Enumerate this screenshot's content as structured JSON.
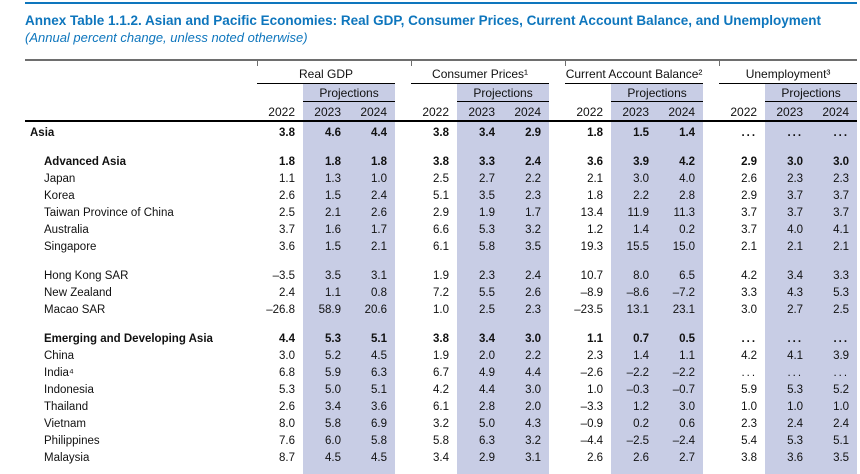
{
  "title": "Annex Table 1.1.2. Asian and Pacific Economies: Real GDP, Consumer Prices, Current Account Balance, and Unemployment",
  "subtitle": "(Annual percent change, unless noted otherwise)",
  "colors": {
    "accent_blue": "#0e76bd",
    "projection_shade": "#c8cde5",
    "top_rule_gray": "#6e6e6e"
  },
  "table": {
    "projections_label": "Projections",
    "years": [
      "2022",
      "2023",
      "2024"
    ],
    "groups": [
      {
        "label": "Real GDP"
      },
      {
        "label": "Consumer Prices¹"
      },
      {
        "label": "Current Account Balance²"
      },
      {
        "label": "Unemployment³"
      }
    ],
    "rows": [
      {
        "name": "Asia",
        "bold": true,
        "indent": 1,
        "space_before": false,
        "values": [
          "3.8",
          "4.6",
          "4.4",
          "3.8",
          "3.4",
          "2.9",
          "1.8",
          "1.5",
          "1.4",
          "...",
          "...",
          "..."
        ]
      },
      {
        "name": "Advanced Asia",
        "bold": true,
        "indent": 2,
        "space_before": true,
        "values": [
          "1.8",
          "1.8",
          "1.8",
          "3.8",
          "3.3",
          "2.4",
          "3.6",
          "3.9",
          "4.2",
          "2.9",
          "3.0",
          "3.0"
        ]
      },
      {
        "name": "Japan",
        "bold": false,
        "indent": 2,
        "space_before": false,
        "values": [
          "1.1",
          "1.3",
          "1.0",
          "2.5",
          "2.7",
          "2.2",
          "2.1",
          "3.0",
          "4.0",
          "2.6",
          "2.3",
          "2.3"
        ]
      },
      {
        "name": "Korea",
        "bold": false,
        "indent": 2,
        "space_before": false,
        "values": [
          "2.6",
          "1.5",
          "2.4",
          "5.1",
          "3.5",
          "2.3",
          "1.8",
          "2.2",
          "2.8",
          "2.9",
          "3.7",
          "3.7"
        ]
      },
      {
        "name": "Taiwan Province of China",
        "bold": false,
        "indent": 2,
        "space_before": false,
        "values": [
          "2.5",
          "2.1",
          "2.6",
          "2.9",
          "1.9",
          "1.7",
          "13.4",
          "11.9",
          "11.3",
          "3.7",
          "3.7",
          "3.7"
        ]
      },
      {
        "name": "Australia",
        "bold": false,
        "indent": 2,
        "space_before": false,
        "values": [
          "3.7",
          "1.6",
          "1.7",
          "6.6",
          "5.3",
          "3.2",
          "1.2",
          "1.4",
          "0.2",
          "3.7",
          "4.0",
          "4.1"
        ]
      },
      {
        "name": "Singapore",
        "bold": false,
        "indent": 2,
        "space_before": false,
        "values": [
          "3.6",
          "1.5",
          "2.1",
          "6.1",
          "5.8",
          "3.5",
          "19.3",
          "15.5",
          "15.0",
          "2.1",
          "2.1",
          "2.1"
        ]
      },
      {
        "name": "Hong Kong SAR",
        "bold": false,
        "indent": 2,
        "space_before": true,
        "values": [
          "–3.5",
          "3.5",
          "3.1",
          "1.9",
          "2.3",
          "2.4",
          "10.7",
          "8.0",
          "6.5",
          "4.2",
          "3.4",
          "3.3"
        ]
      },
      {
        "name": "New Zealand",
        "bold": false,
        "indent": 2,
        "space_before": false,
        "values": [
          "2.4",
          "1.1",
          "0.8",
          "7.2",
          "5.5",
          "2.6",
          "–8.9",
          "–8.6",
          "–7.2",
          "3.3",
          "4.3",
          "5.3"
        ]
      },
      {
        "name": "Macao SAR",
        "bold": false,
        "indent": 2,
        "space_before": false,
        "values": [
          "–26.8",
          "58.9",
          "20.6",
          "1.0",
          "2.5",
          "2.3",
          "–23.5",
          "13.1",
          "23.1",
          "3.0",
          "2.7",
          "2.5"
        ]
      },
      {
        "name": "Emerging and Developing Asia",
        "bold": true,
        "indent": 2,
        "space_before": true,
        "values": [
          "4.4",
          "5.3",
          "5.1",
          "3.8",
          "3.4",
          "3.0",
          "1.1",
          "0.7",
          "0.5",
          "...",
          "...",
          "..."
        ]
      },
      {
        "name": "China",
        "bold": false,
        "indent": 2,
        "space_before": false,
        "values": [
          "3.0",
          "5.2",
          "4.5",
          "1.9",
          "2.0",
          "2.2",
          "2.3",
          "1.4",
          "1.1",
          "4.2",
          "4.1",
          "3.9"
        ]
      },
      {
        "name": "India⁴",
        "bold": false,
        "indent": 2,
        "space_before": false,
        "values": [
          "6.8",
          "5.9",
          "6.3",
          "6.7",
          "4.9",
          "4.4",
          "–2.6",
          "–2.2",
          "–2.2",
          "...",
          "...",
          "..."
        ]
      },
      {
        "name": "Indonesia",
        "bold": false,
        "indent": 2,
        "space_before": false,
        "values": [
          "5.3",
          "5.0",
          "5.1",
          "4.2",
          "4.4",
          "3.0",
          "1.0",
          "–0.3",
          "–0.7",
          "5.9",
          "5.3",
          "5.2"
        ]
      },
      {
        "name": "Thailand",
        "bold": false,
        "indent": 2,
        "space_before": false,
        "values": [
          "2.6",
          "3.4",
          "3.6",
          "6.1",
          "2.8",
          "2.0",
          "–3.3",
          "1.2",
          "3.0",
          "1.0",
          "1.0",
          "1.0"
        ]
      },
      {
        "name": "Vietnam",
        "bold": false,
        "indent": 2,
        "space_before": false,
        "values": [
          "8.0",
          "5.8",
          "6.9",
          "3.2",
          "5.0",
          "4.3",
          "–0.9",
          "0.2",
          "0.6",
          "2.3",
          "2.4",
          "2.4"
        ]
      },
      {
        "name": "Philippines",
        "bold": false,
        "indent": 2,
        "space_before": false,
        "values": [
          "7.6",
          "6.0",
          "5.8",
          "5.8",
          "6.3",
          "3.2",
          "–4.4",
          "–2.5",
          "–2.4",
          "5.4",
          "5.3",
          "5.1"
        ]
      },
      {
        "name": "Malaysia",
        "bold": false,
        "indent": 2,
        "space_before": false,
        "values": [
          "8.7",
          "4.5",
          "4.5",
          "3.4",
          "2.9",
          "3.1",
          "2.6",
          "2.6",
          "2.7",
          "3.8",
          "3.6",
          "3.5"
        ]
      }
    ]
  }
}
